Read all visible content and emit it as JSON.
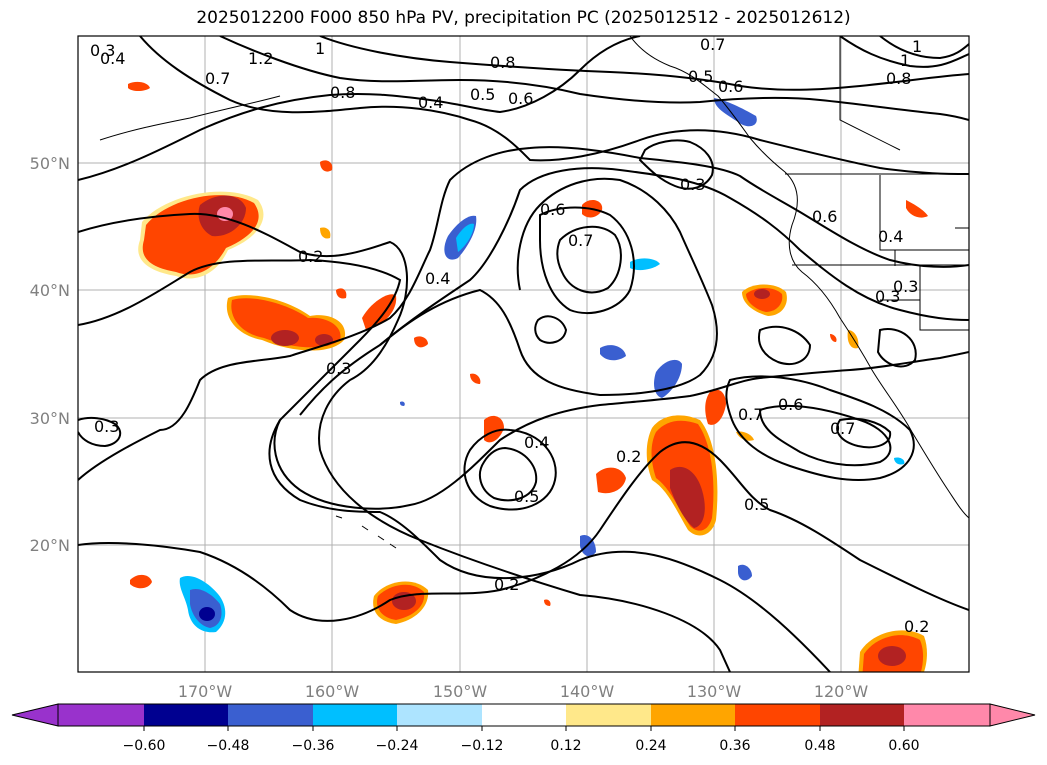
{
  "title": "2025012200 F000 850 hPa PV, precipitation PC (2025012512 - 2025012612)",
  "map": {
    "lat_labels": [
      "50°N",
      "40°N",
      "30°N",
      "20°N"
    ],
    "lon_labels": [
      "170°W",
      "160°W",
      "150°W",
      "140°W",
      "130°W",
      "120°W"
    ],
    "gridline_color": "#b0b0b0",
    "tick_label_color": "#808080",
    "contour_color": "#000000",
    "contour_labels": [
      "0.3",
      "0.4",
      "1.2",
      "1",
      "0.7",
      "0.8",
      "0.8",
      "0.4",
      "0.5",
      "0.6",
      "0.7",
      "0.6",
      "0.5",
      "0.3",
      "0.6",
      "0.7",
      "0.6",
      "0.4",
      "0.3",
      "0.3",
      "0.2",
      "0.4",
      "0.3",
      "0.3",
      "0.4",
      "0.5",
      "0.2",
      "0.7",
      "0.6",
      "0.7",
      "0.5",
      "0.2",
      "0.2",
      "0.8",
      "1",
      "1"
    ]
  },
  "colorbar": {
    "ticks": [
      "−0.60",
      "−0.48",
      "−0.36",
      "−0.24",
      "−0.12",
      "0.12",
      "0.24",
      "0.36",
      "0.48",
      "0.60"
    ],
    "under_color": "#9932cc",
    "over_color": "#ff88aa",
    "colors": [
      "#000090",
      "#3a5fd0",
      "#00bfff",
      "#ade4ff",
      "#ffffff",
      "#ffe88a",
      "#ffa500",
      "#ff4500",
      "#b22222",
      "#ff88aa"
    ]
  }
}
